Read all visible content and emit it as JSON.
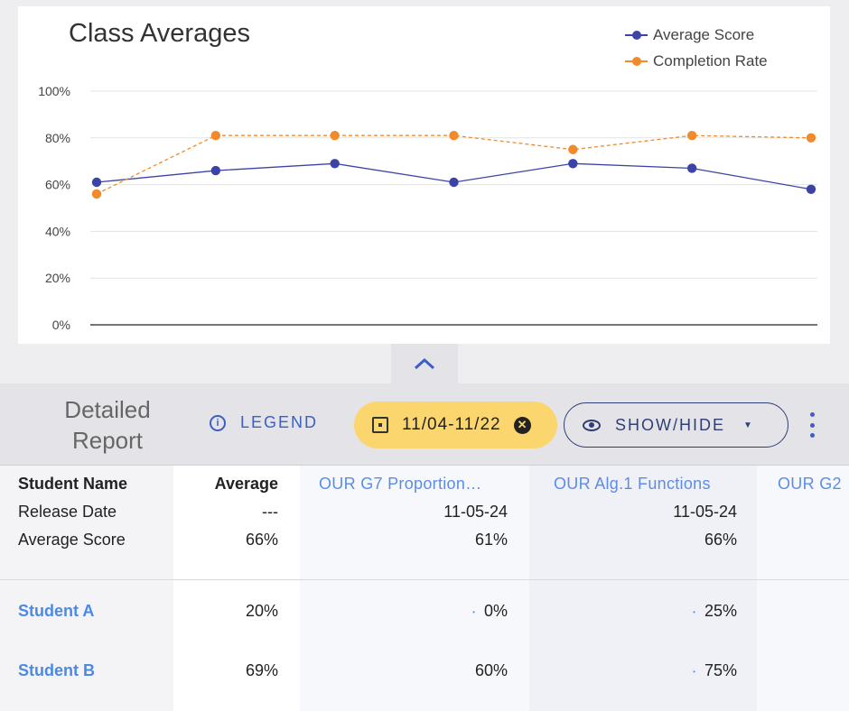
{
  "chart": {
    "title": "Class Averages"
  },
  "chart_data": {
    "type": "line",
    "title": "Class Averages",
    "x": [
      1,
      2,
      3,
      4,
      5,
      6,
      7
    ],
    "ylim": [
      0,
      100
    ],
    "yticks": [
      "0%",
      "20%",
      "40%",
      "60%",
      "80%",
      "100%"
    ],
    "grid": true,
    "legend_position": "top-right",
    "series": [
      {
        "name": "Average Score",
        "color": "#3b44a6",
        "style": "solid",
        "values": [
          61,
          66,
          69,
          61,
          69,
          67,
          58
        ]
      },
      {
        "name": "Completion Rate",
        "color": "#f08a2c",
        "style": "dashed",
        "values": [
          56,
          81,
          81,
          81,
          75,
          81,
          80
        ]
      }
    ]
  },
  "toolbar": {
    "title": "Detailed Report",
    "legend_label": "LEGEND",
    "date_range": "11/04-11/22",
    "showhide_label": "SHOW/HIDE",
    "collapse_icon": "chevron-up-icon"
  },
  "table": {
    "row_labels": [
      "Student Name",
      "Release Date",
      "Average Score"
    ],
    "average_header": "Average",
    "average_release": "---",
    "average_score": "66%",
    "assignments": [
      {
        "title": "OUR G7 Proportion…",
        "release": "11-05-24",
        "avg": "61%"
      },
      {
        "title": "OUR Alg.1 Functions",
        "release": "11-05-24",
        "avg": "66%"
      },
      {
        "title": "OUR G2",
        "release": "",
        "avg": ""
      }
    ],
    "students": [
      {
        "name": "Student A",
        "average": "20%",
        "scores": [
          "0%",
          "25%"
        ]
      },
      {
        "name": "Student B",
        "average": "69%",
        "scores": [
          "60%",
          "75%"
        ]
      }
    ]
  },
  "colors": {
    "accent": "#3b5fc4",
    "chip": "#fbd66e",
    "link": "#4a8ae6"
  }
}
